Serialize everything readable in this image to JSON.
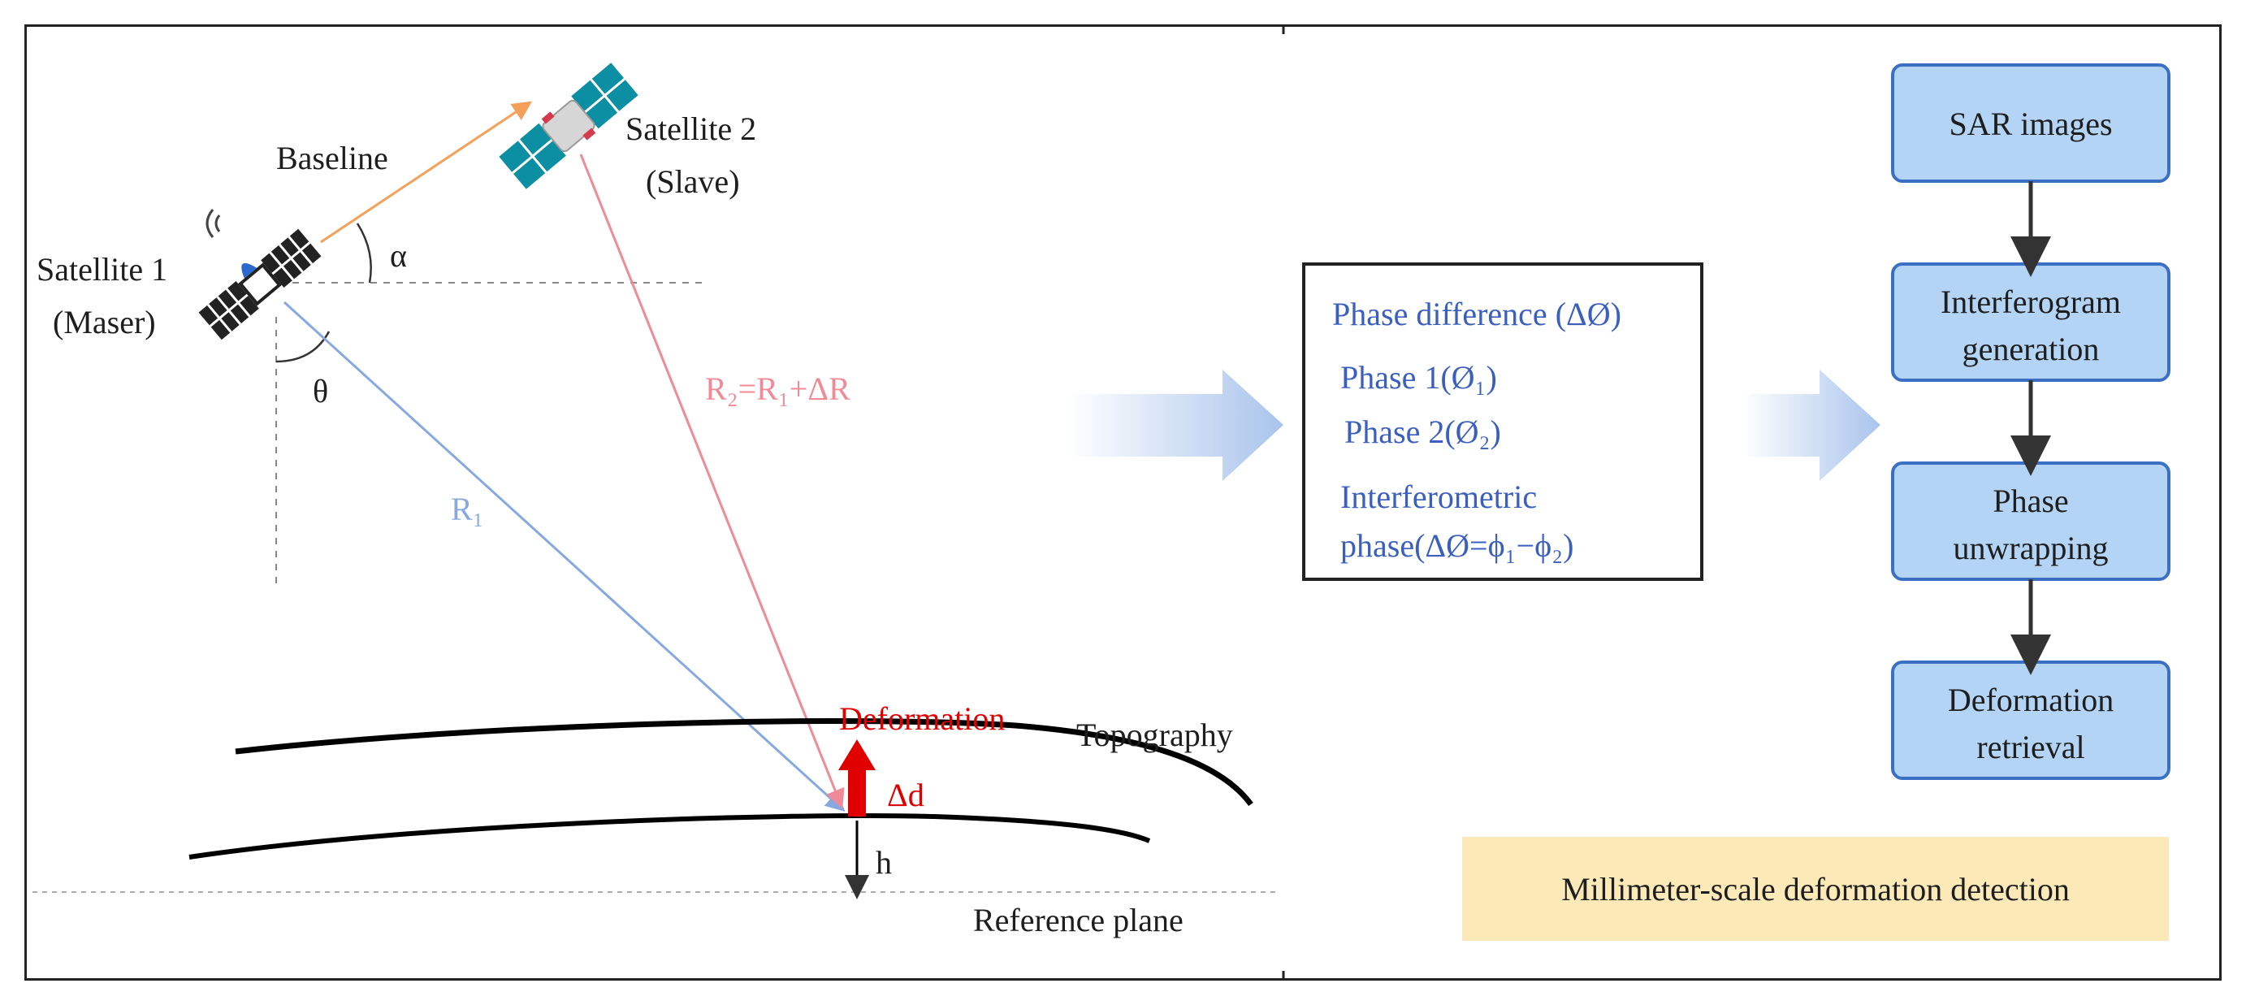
{
  "geometry": {
    "satellite1_label": [
      "Satellite 1",
      "(Maser)"
    ],
    "satellite2_label": [
      "Satellite 2",
      "(Slave)"
    ],
    "baseline_label": "Baseline",
    "alpha_label": "α",
    "theta_label": "θ",
    "r1_label": "R₁",
    "r2_label": "R₂=R₁+ΔR",
    "deformation_label": "Deformation",
    "delta_d_label": "Δd",
    "topography_label": "Topography",
    "h_label": "h",
    "reference_plane_label": "Reference plane"
  },
  "phase_box": {
    "title": "Phase difference (ΔØ)",
    "phase1": "Phase 1(Ø₁)",
    "phase2": "Phase 2(Ø₂)",
    "interferometric": [
      "Interferometric",
      "phase(ΔØ=ϕ₁−ϕ₂)"
    ]
  },
  "flowchart": {
    "steps": [
      [
        "SAR images"
      ],
      [
        "Interferogram",
        "generation"
      ],
      [
        "Phase",
        "unwrapping"
      ],
      [
        "Deformation",
        "retrieval"
      ]
    ]
  },
  "result_label": "Millimeter-scale deformation detection",
  "colors": {
    "phase_text": "#3a5fbf",
    "deformation": "#e00000",
    "r2_line": "#f08a96",
    "r1_line": "#86a9e0",
    "baseline_line": "#f4a058",
    "flow_box_fill": "#b3d4f5",
    "flow_box_border": "#3b6fc4",
    "result_fill": "#fbe9b7"
  }
}
